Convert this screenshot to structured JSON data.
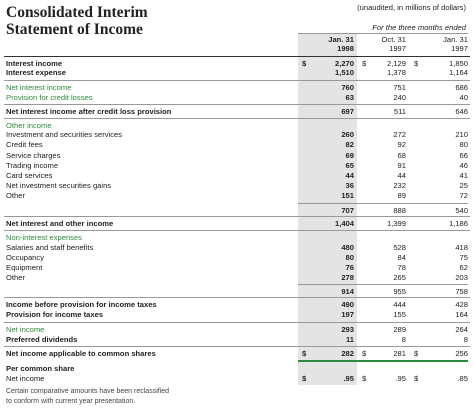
{
  "header": {
    "title": [
      "Consolidated Interim",
      "Statement of Income"
    ],
    "note": "(unaudited, in millions of dollars)",
    "period": "For the three months ended",
    "columns": [
      {
        "month": "Jan. 31",
        "year": "1998"
      },
      {
        "month": "Oct. 31",
        "year": "1997"
      },
      {
        "month": "Jan. 31",
        "year": "1997"
      }
    ]
  },
  "table": {
    "rows": [
      {
        "label": "Interest income",
        "values": [
          "2,270",
          "2,129",
          "1,850"
        ],
        "currency": "$",
        "style": "bold"
      },
      {
        "label": "Interest expense",
        "values": [
          "1,510",
          "1,378",
          "1,164"
        ],
        "style": "bold"
      },
      {
        "label": "Net interest income",
        "values": [
          "760",
          "751",
          "686"
        ],
        "style": "green"
      },
      {
        "label": "Provision for credit losses",
        "values": [
          "63",
          "240",
          "40"
        ],
        "style": "green"
      },
      {
        "label": "Net interest income after credit loss provision",
        "values": [
          "697",
          "511",
          "646"
        ],
        "style": "bold"
      },
      {
        "label": "Other income",
        "style": "green"
      },
      {
        "label": "Investment and securities services",
        "values": [
          "260",
          "272",
          "210"
        ],
        "style": "normal"
      },
      {
        "label": "Credit fees",
        "values": [
          "82",
          "92",
          "80"
        ],
        "style": "normal"
      },
      {
        "label": "Service charges",
        "values": [
          "69",
          "68",
          "66"
        ],
        "style": "normal"
      },
      {
        "label": "Trading income",
        "values": [
          "65",
          "91",
          "46"
        ],
        "style": "normal"
      },
      {
        "label": "Card services",
        "values": [
          "44",
          "44",
          "41"
        ],
        "style": "normal"
      },
      {
        "label": "Net investment securities gains",
        "values": [
          "36",
          "232",
          "25"
        ],
        "style": "normal"
      },
      {
        "label": "Other",
        "values": [
          "151",
          "89",
          "72"
        ],
        "style": "normal"
      },
      {
        "values": [
          "707",
          "888",
          "540"
        ],
        "style": "normal"
      },
      {
        "label": "Net interest and other income",
        "values": [
          "1,404",
          "1,399",
          "1,186"
        ],
        "style": "bold"
      },
      {
        "label": "Non-interest expenses",
        "style": "green"
      },
      {
        "label": "Salaries and staff benefits",
        "values": [
          "480",
          "528",
          "418"
        ],
        "style": "normal"
      },
      {
        "label": "Occupancy",
        "values": [
          "80",
          "84",
          "75"
        ],
        "style": "normal"
      },
      {
        "label": "Equipment",
        "values": [
          "76",
          "78",
          "62"
        ],
        "style": "normal"
      },
      {
        "label": "Other",
        "values": [
          "278",
          "265",
          "203"
        ],
        "style": "normal"
      },
      {
        "values": [
          "914",
          "955",
          "758"
        ],
        "style": "normal"
      },
      {
        "label": "Income before provision for income taxes",
        "values": [
          "490",
          "444",
          "428"
        ],
        "style": "bold"
      },
      {
        "label": "Provision for income taxes",
        "values": [
          "197",
          "155",
          "164"
        ],
        "style": "bold"
      },
      {
        "label": "Net income",
        "values": [
          "293",
          "289",
          "264"
        ],
        "style": "green"
      },
      {
        "label": "Preferred dividends",
        "values": [
          "11",
          "8",
          "8"
        ],
        "style": "bold"
      },
      {
        "label": "Net income applicable to common shares",
        "values": [
          "282",
          "281",
          "256"
        ],
        "currency": "$",
        "style": "bold"
      },
      {
        "label": "Per common share",
        "style": "bold"
      },
      {
        "label": "Net income",
        "values": [
          ".95",
          ".95",
          ".85"
        ],
        "currency": "$",
        "style": "normal"
      }
    ]
  },
  "footnote": [
    "Certain comparative amounts have been reclassified",
    "to conform with current year presentation."
  ]
}
